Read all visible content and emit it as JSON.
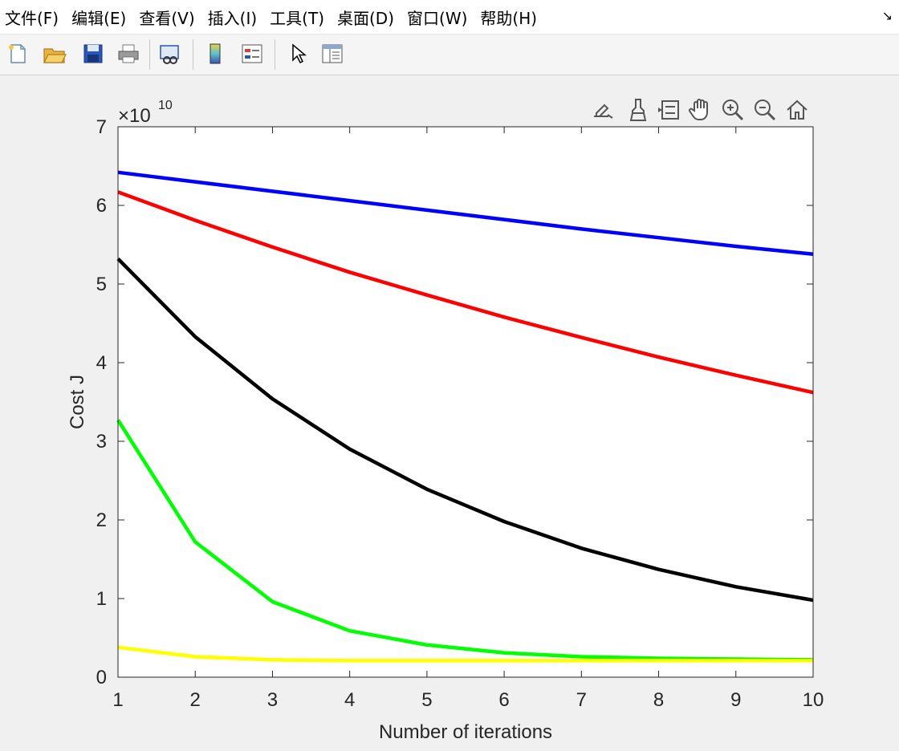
{
  "menu": {
    "items": [
      {
        "name": "menu-file",
        "label": "文件(F)"
      },
      {
        "name": "menu-edit",
        "label": "编辑(E)"
      },
      {
        "name": "menu-view",
        "label": "查看(V)"
      },
      {
        "name": "menu-insert",
        "label": "插入(I)"
      },
      {
        "name": "menu-tools",
        "label": "工具(T)"
      },
      {
        "name": "menu-desktop",
        "label": "桌面(D)"
      },
      {
        "name": "menu-window",
        "label": "窗口(W)"
      },
      {
        "name": "menu-help",
        "label": "帮助(H)"
      }
    ],
    "dock_glyph": "↘"
  },
  "toolbar": {
    "icons": [
      "new-figure-icon",
      "open-file-icon",
      "save-icon",
      "print-icon",
      "link-plot-icon",
      "colorbar-icon",
      "legend-icon",
      "select-arrow-icon",
      "property-inspector-icon"
    ]
  },
  "axes_toolbar": {
    "icons": [
      "export-icon",
      "brush-icon",
      "data-tips-icon",
      "pan-hand-icon",
      "zoom-in-icon",
      "zoom-out-icon",
      "restore-home-icon"
    ]
  },
  "chart_data": {
    "type": "line",
    "title": "",
    "xlabel": "Number of iterations",
    "ylabel": "Cost J",
    "exponent_label": "×10",
    "exponent_power": "10",
    "xlim": [
      1,
      10
    ],
    "ylim": [
      0,
      7
    ],
    "xticks": [
      "1",
      "2",
      "3",
      "4",
      "5",
      "6",
      "7",
      "8",
      "9",
      "10"
    ],
    "yticks": [
      "0",
      "1",
      "2",
      "3",
      "4",
      "5",
      "6",
      "7"
    ],
    "grid": false,
    "x": [
      1,
      2,
      3,
      4,
      5,
      6,
      7,
      8,
      9,
      10
    ],
    "series": [
      {
        "color": "#0000ff",
        "values": [
          6.42,
          6.3,
          6.18,
          6.06,
          5.94,
          5.82,
          5.7,
          5.59,
          5.48,
          5.38
        ]
      },
      {
        "color": "#ff0000",
        "values": [
          6.17,
          5.81,
          5.47,
          5.15,
          4.86,
          4.58,
          4.32,
          4.07,
          3.84,
          3.62
        ]
      },
      {
        "color": "#000000",
        "values": [
          5.32,
          4.33,
          3.54,
          2.9,
          2.39,
          1.98,
          1.64,
          1.37,
          1.15,
          0.98
        ]
      },
      {
        "color": "#00ff00",
        "values": [
          3.27,
          1.72,
          0.96,
          0.59,
          0.41,
          0.31,
          0.26,
          0.24,
          0.23,
          0.22
        ]
      },
      {
        "color": "#ffff00",
        "values": [
          0.38,
          0.26,
          0.22,
          0.21,
          0.21,
          0.21,
          0.21,
          0.21,
          0.21,
          0.21
        ]
      }
    ]
  }
}
